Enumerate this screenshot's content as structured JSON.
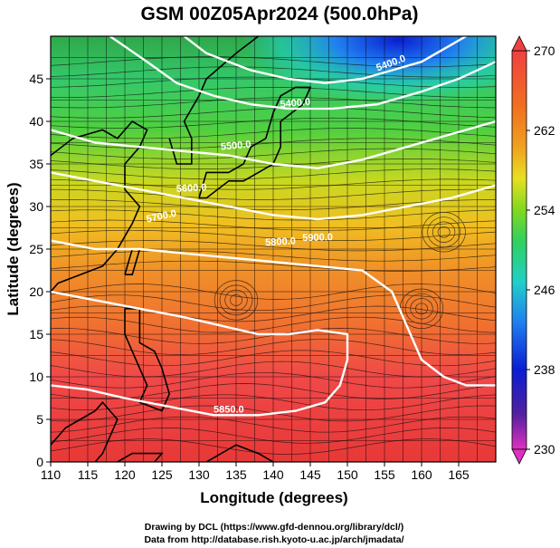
{
  "title": "GSM 00Z05Apr2024 (500.0hPa)",
  "x_axis": {
    "label": "Longitude (degrees)",
    "range": [
      110,
      170
    ],
    "ticks": [
      "110",
      "115",
      "120",
      "125",
      "130",
      "135",
      "140",
      "145",
      "150",
      "155",
      "160",
      "165"
    ]
  },
  "y_axis": {
    "label": "Latitude  (degrees)",
    "range": [
      0,
      50
    ],
    "ticks": [
      "0",
      "5",
      "10",
      "15",
      "20",
      "25",
      "30",
      "35",
      "40",
      "45"
    ]
  },
  "colorbar": {
    "range": [
      230,
      270
    ],
    "labels": [
      "270",
      "262",
      "254",
      "246",
      "238",
      "230"
    ],
    "stops": [
      "#e030c0",
      "#5020a0",
      "#0a1ed2",
      "#2080f0",
      "#20d0c8",
      "#30d060",
      "#80d820",
      "#e8e020",
      "#f0a020",
      "#f07020",
      "#f04040",
      "#e83838"
    ]
  },
  "contours": {
    "color": "#ffffff",
    "labels": [
      "5400.0",
      "5400.0",
      "5500.0",
      "5600.0",
      "5700.0",
      "5800.0",
      "5850.0",
      "5900.0"
    ]
  },
  "credits": {
    "line1": "Drawing by DCL (https://www.gfd-dennou.org/library/dcl/)",
    "line2": "Data from http://database.rish.kyoto-u.ac.jp/arch/jmadata/"
  }
}
